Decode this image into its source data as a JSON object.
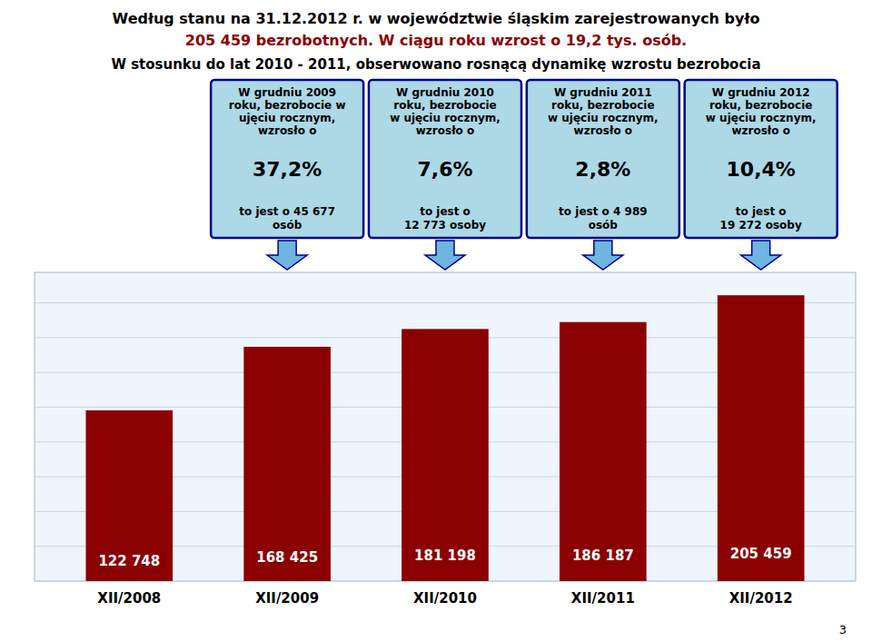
{
  "chart_data": {
    "type": "bar",
    "title": [
      "Według stanu na 31.12.2012 r. w województwie śląskim zarejestrowanych było",
      "205 459 bezrobotnych.  W ciągu roku wzrost o 19,2 tys. osób.",
      "W stosunku do lat 2010 - 2011, obserwowano rosnącą dynamikę wzrostu bezrobocia"
    ],
    "categories": [
      "XII/2008",
      "XII/2009",
      "XII/2010",
      "XII/2011",
      "XII/2012"
    ],
    "values": [
      122748,
      168425,
      181198,
      186187,
      205459
    ],
    "value_labels": [
      "122 748",
      "168 425",
      "181 198",
      "186 187",
      "205 459"
    ],
    "data_labels": true,
    "color": "#8B0000",
    "ylim": [
      0,
      221895.72
    ],
    "yticks": [
      0,
      25000,
      50000,
      75000,
      100000,
      125000,
      150000,
      175000,
      200000
    ],
    "grid": true,
    "tick_labels": "x",
    "annotations": [
      {
        "category": "XII/2009",
        "header": "W grudniu 2009\nroku, bezrobocie w\nujęciu rocznym,\nwzrosło o",
        "percent": "37,2%",
        "footer": "to jest  o  45 677\nosób"
      },
      {
        "category": "XII/2010",
        "header": "W grudniu 2010\nroku, bezrobocie\nw ujęciu rocznym,\nwzrosło o",
        "percent": "7,6%",
        "footer": "to jest o\n12 773 osoby"
      },
      {
        "category": "XII/2011",
        "header": "W grudniu 2011\nroku, bezrobocie\nw ujęciu rocznym,\nwzrosło o",
        "percent": "2,8%",
        "footer": "to jest o  4 989\nosób"
      },
      {
        "category": "XII/2012",
        "header": "W grudniu 2012\nroku, bezrobocie\nw ujęciu rocznym,\nwzrosło o",
        "percent": "10,4%",
        "footer": "to jest o\n19 272 osoby"
      },
      {
        "text": "3"
      }
    ]
  }
}
